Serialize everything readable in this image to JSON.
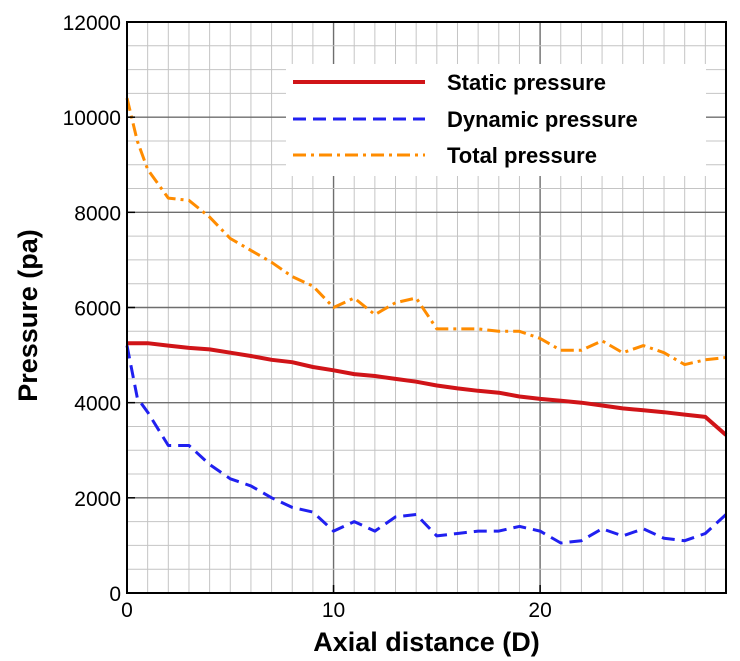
{
  "chart_data": {
    "type": "line",
    "title": "",
    "xlabel": "Axial distance (D)",
    "ylabel": "Pressure (pa)",
    "xlim": [
      0,
      29
    ],
    "ylim": [
      0,
      12000
    ],
    "x_major_ticks": [
      0,
      10,
      20
    ],
    "x_minor_step": 1,
    "y_major_ticks": [
      0,
      2000,
      4000,
      6000,
      8000,
      10000,
      12000
    ],
    "y_minor_step": 500,
    "grid": true,
    "legend_position": "top-right",
    "series": [
      {
        "name": "Static pressure",
        "style": "solid",
        "color": "#d01418",
        "x": [
          0,
          1,
          2,
          3,
          4,
          5,
          6,
          7,
          8,
          9,
          10,
          11,
          12,
          13,
          14,
          15,
          16,
          17,
          18,
          19,
          20,
          21,
          22,
          23,
          24,
          25,
          26,
          27,
          28,
          29
        ],
        "values": [
          5250,
          5250,
          5200,
          5150,
          5120,
          5050,
          4980,
          4900,
          4850,
          4750,
          4680,
          4600,
          4560,
          4500,
          4440,
          4360,
          4300,
          4250,
          4210,
          4130,
          4080,
          4040,
          4000,
          3940,
          3880,
          3840,
          3800,
          3750,
          3700,
          3320
        ]
      },
      {
        "name": "Dynamic pressure",
        "style": "dashed",
        "color": "#2020f0",
        "x": [
          0,
          0.5,
          1,
          2,
          3,
          4,
          5,
          6,
          7,
          8,
          9,
          10,
          11,
          12,
          13,
          14,
          15,
          16,
          17,
          18,
          19,
          20,
          21,
          22,
          23,
          24,
          25,
          26,
          27,
          28,
          29
        ],
        "values": [
          5200,
          4100,
          3800,
          3100,
          3100,
          2700,
          2400,
          2250,
          2000,
          1800,
          1700,
          1300,
          1500,
          1300,
          1600,
          1650,
          1200,
          1250,
          1300,
          1300,
          1400,
          1300,
          1050,
          1100,
          1350,
          1200,
          1350,
          1150,
          1100,
          1250,
          1650
        ]
      },
      {
        "name": "Total pressure",
        "style": "dash-dot",
        "color": "#ff8c00",
        "x": [
          0,
          0.5,
          1,
          2,
          3,
          4,
          5,
          6,
          7,
          8,
          9,
          10,
          11,
          12,
          13,
          14,
          15,
          16,
          17,
          18,
          19,
          20,
          21,
          22,
          23,
          24,
          25,
          26,
          27,
          28,
          29
        ],
        "values": [
          10400,
          9500,
          8900,
          8300,
          8250,
          7900,
          7450,
          7200,
          6950,
          6650,
          6450,
          6000,
          6200,
          5850,
          6100,
          6200,
          5550,
          5550,
          5550,
          5500,
          5500,
          5350,
          5100,
          5100,
          5300,
          5050,
          5200,
          5050,
          4800,
          4900,
          4950
        ]
      }
    ]
  }
}
